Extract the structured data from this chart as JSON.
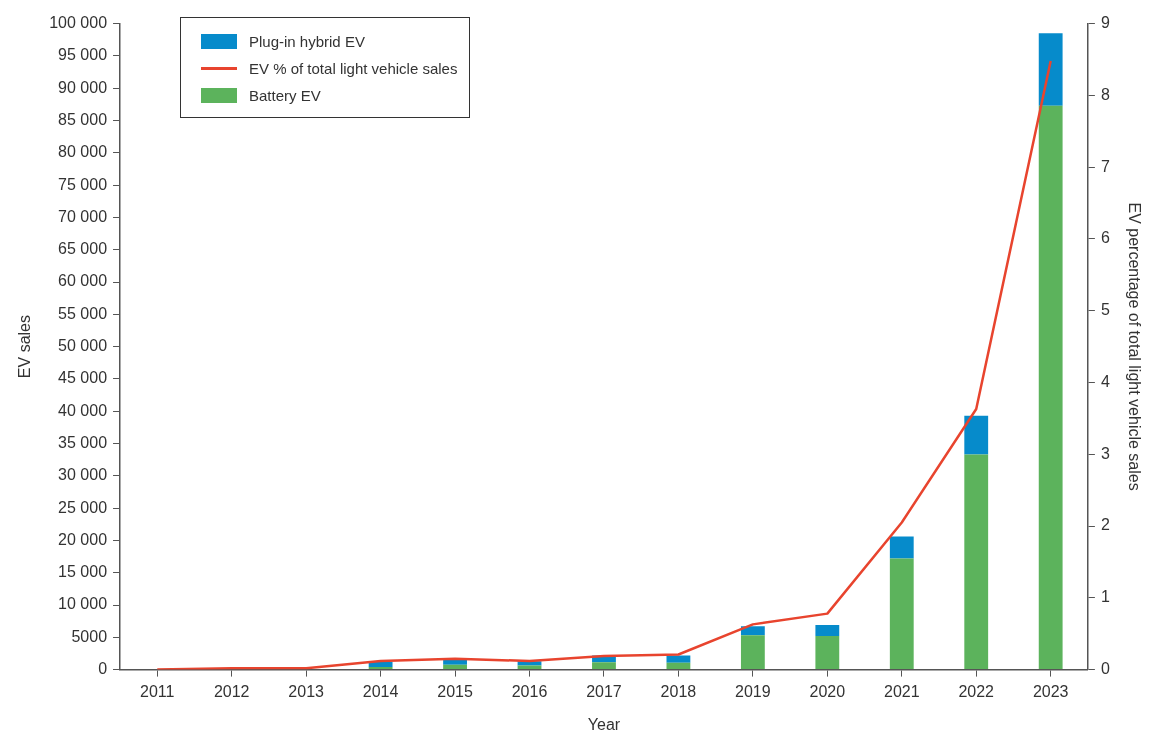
{
  "chart_data": {
    "type": "bar",
    "stacked": true,
    "xlabel": "Year",
    "ylabel": "EV sales",
    "y2label": "EV percentage of total light vehicle sales",
    "categories": [
      "2011",
      "2012",
      "2013",
      "2014",
      "2015",
      "2016",
      "2017",
      "2018",
      "2019",
      "2020",
      "2021",
      "2022",
      "2023"
    ],
    "series": [
      {
        "name": "Battery EV",
        "color": "#5cb35c",
        "values": [
          0,
          0,
          0,
          400,
          750,
          650,
          1150,
          1050,
          5300,
          5200,
          17200,
          33300,
          87300
        ]
      },
      {
        "name": "EV % of total light vehicle sales",
        "type": "line",
        "axis": "y2",
        "color": "#e8442e",
        "values": [
          0,
          0.02,
          0.02,
          0.12,
          0.15,
          0.12,
          0.19,
          0.21,
          0.63,
          0.78,
          2.05,
          3.63,
          8.48
        ]
      },
      {
        "name": "Plug-in hybrid EV",
        "color": "#068bcb",
        "values": [
          0,
          0,
          0,
          800,
          750,
          650,
          1050,
          1150,
          1400,
          1700,
          3400,
          6000,
          11200
        ]
      }
    ],
    "ylim": [
      0,
      100000
    ],
    "yticks": [
      0,
      5000,
      {
        "value": 10000,
        "label": "10 000"
      },
      {
        "value": 15000,
        "label": "15 000"
      },
      {
        "value": 20000,
        "label": "20 000"
      },
      {
        "value": 25000,
        "label": "25 000"
      },
      {
        "value": 30000,
        "label": "30 000"
      },
      {
        "value": 35000,
        "label": "35 000"
      },
      {
        "value": 40000,
        "label": "40 000"
      },
      {
        "value": 45000,
        "label": "45 000"
      },
      {
        "value": 50000,
        "label": "50 000"
      },
      {
        "value": 55000,
        "label": "55 000"
      },
      {
        "value": 60000,
        "label": "60 000"
      },
      {
        "value": 65000,
        "label": "65 000"
      },
      {
        "value": 70000,
        "label": "70 000"
      },
      {
        "value": 75000,
        "label": "75 000"
      },
      {
        "value": 80000,
        "label": "80 000"
      },
      {
        "value": 85000,
        "label": "85 000"
      },
      {
        "value": 90000,
        "label": "90 000"
      },
      {
        "value": 95000,
        "label": "95 000"
      },
      {
        "value": 100000,
        "label": "100 000"
      }
    ],
    "y2lim": [
      0,
      9
    ],
    "y2ticks": [
      0,
      1,
      2,
      3,
      4,
      5,
      6,
      7,
      8,
      9
    ],
    "legend": "top left",
    "grid": false,
    "marker": "none"
  }
}
